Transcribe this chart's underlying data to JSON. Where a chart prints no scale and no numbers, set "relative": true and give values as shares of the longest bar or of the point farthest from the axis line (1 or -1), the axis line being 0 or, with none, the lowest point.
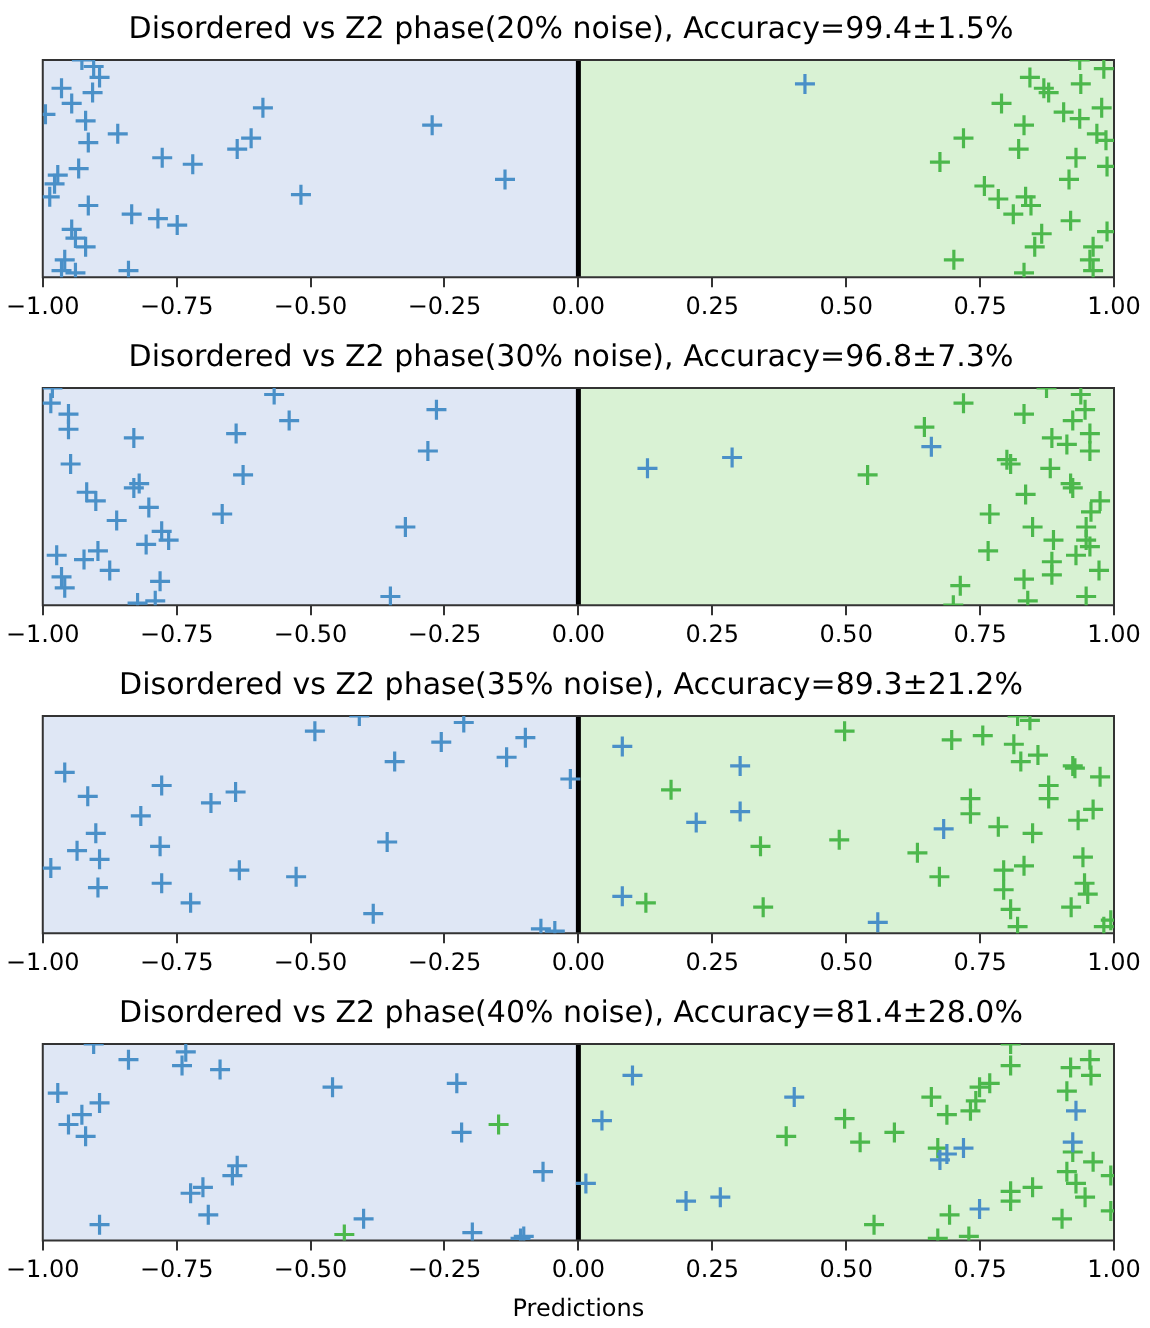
{
  "chart_data": [
    {
      "type": "scatter",
      "title": "Disordered vs Z2 phase(20% noise), Accuracy=99.4±1.5%",
      "relative": true,
      "marker": "cross",
      "tick_labels": "x",
      "xlim": [
        -1,
        1
      ],
      "xticks": [
        {
          "value": -1,
          "label": "−1.00"
        },
        {
          "value": -0.75,
          "label": "−0.75"
        },
        {
          "value": -0.5,
          "label": "−0.50"
        },
        {
          "value": -0.25,
          "label": "−0.25"
        },
        {
          "value": 0,
          "label": "0.00"
        },
        {
          "value": 0.25,
          "label": "0.25"
        },
        {
          "value": 0.5,
          "label": "0.50"
        },
        {
          "value": 0.75,
          "label": "0.75"
        },
        {
          "value": 1,
          "label": "1.00"
        }
      ],
      "bands": [
        {
          "axis": "x",
          "from": -1,
          "to": 0,
          "color": "#dfe7f5"
        },
        {
          "axis": "x",
          "from": 0,
          "to": 1,
          "color": "#d9f2d4"
        }
      ],
      "ref_lines": [
        {
          "axis": "x",
          "value": 0,
          "color": "#000000"
        }
      ],
      "series": [
        {
          "color": "#4a90c8",
          "x": [
            -0.927,
            -0.905,
            -0.894,
            -0.965,
            -0.907,
            -0.946,
            -0.995,
            -0.92,
            -0.86,
            -0.915,
            -0.589,
            -0.273,
            -0.611,
            -0.637,
            -0.777,
            -0.72,
            -0.933,
            -0.972,
            -0.978,
            -0.987,
            -0.915,
            -0.518,
            -0.137,
            -0.834,
            -0.785,
            -0.749,
            -0.946,
            -0.939,
            -0.92,
            -0.959,
            -0.965,
            -0.939,
            -0.84,
            0.423
          ],
          "values": [
            1,
            0.97,
            0.92,
            0.87,
            0.85,
            0.8,
            0.75,
            0.72,
            0.66,
            0.62,
            0.78,
            0.7,
            0.64,
            0.59,
            0.55,
            0.52,
            0.5,
            0.47,
            0.43,
            0.37,
            0.33,
            0.38,
            0.45,
            0.29,
            0.27,
            0.24,
            0.22,
            0.18,
            0.14,
            0.08,
            0.03,
            0.02,
            0.03,
            0.89
          ]
        },
        {
          "color": "#4cb84c",
          "x": [
            0.843,
            0.869,
            0.878,
            0.936,
            0.981,
            0.938,
            0.79,
            0.906,
            0.936,
            0.977,
            0.832,
            0.719,
            0.968,
            0.985,
            0.822,
            0.675,
            0.929,
            0.987,
            0.916,
            0.758,
            0.784,
            0.835,
            0.845,
            0.812,
            0.919,
            0.865,
            0.852,
            0.987,
            0.961,
            0.955,
            0.961,
            0.701,
            0.832
          ],
          "values": [
            0.92,
            0.87,
            0.85,
            1,
            0.96,
            0.89,
            0.8,
            0.76,
            0.73,
            0.78,
            0.7,
            0.64,
            0.66,
            0.63,
            0.59,
            0.53,
            0.55,
            0.51,
            0.45,
            0.42,
            0.36,
            0.37,
            0.33,
            0.29,
            0.26,
            0.2,
            0.14,
            0.21,
            0.14,
            0.08,
            0.03,
            0.08,
            0.02
          ]
        }
      ]
    },
    {
      "type": "scatter",
      "title": "Disordered vs Z2 phase(30% noise), Accuracy=96.8±7.3%",
      "relative": true,
      "marker": "cross",
      "tick_labels": "x",
      "xlim": [
        -1,
        1
      ],
      "xticks": [
        {
          "value": -1,
          "label": "−1.00"
        },
        {
          "value": -0.75,
          "label": "−0.75"
        },
        {
          "value": -0.5,
          "label": "−0.50"
        },
        {
          "value": -0.25,
          "label": "−0.25"
        },
        {
          "value": 0,
          "label": "0.00"
        },
        {
          "value": 0.25,
          "label": "0.25"
        },
        {
          "value": 0.5,
          "label": "0.50"
        },
        {
          "value": 0.75,
          "label": "0.75"
        },
        {
          "value": 1,
          "label": "1.00"
        }
      ],
      "bands": [
        {
          "axis": "x",
          "from": -1,
          "to": 0,
          "color": "#dfe7f5"
        },
        {
          "axis": "x",
          "from": 0,
          "to": 1,
          "color": "#d9f2d4"
        }
      ],
      "ref_lines": [
        {
          "axis": "x",
          "value": 0,
          "color": "#000000"
        }
      ],
      "series": [
        {
          "color": "#4a90c8",
          "x": [
            -0.982,
            -0.985,
            -0.952,
            -0.952,
            -0.83,
            -0.948,
            -0.918,
            -0.901,
            -0.83,
            -0.82,
            -0.802,
            -0.862,
            -0.778,
            -0.765,
            -0.807,
            -0.897,
            -0.923,
            -0.974,
            -0.875,
            -0.965,
            -0.959,
            -0.781,
            -0.79,
            -0.823,
            -0.639,
            -0.568,
            -0.54,
            -0.626,
            -0.665,
            -0.265,
            -0.281,
            -0.323,
            -0.351,
            0.129,
            0.287,
            0.659
          ],
          "values": [
            1,
            0.93,
            0.88,
            0.81,
            0.77,
            0.65,
            0.52,
            0.48,
            0.54,
            0.56,
            0.45,
            0.39,
            0.34,
            0.3,
            0.28,
            0.25,
            0.21,
            0.23,
            0.16,
            0.13,
            0.08,
            0.11,
            0.02,
            0.01,
            0.79,
            0.97,
            0.85,
            0.6,
            0.42,
            0.9,
            0.71,
            0.36,
            0.04,
            0.63,
            0.68,
            0.73
          ]
        },
        {
          "color": "#4cb84c",
          "x": [
            0.719,
            0.646,
            0.832,
            0.874,
            0.938,
            0.946,
            0.923,
            0.955,
            0.884,
            0.912,
            0.955,
            0.8,
            0.807,
            0.881,
            0.54,
            0.919,
            0.923,
            0.835,
            0.974,
            0.768,
            0.957,
            0.948,
            0.848,
            0.887,
            0.948,
            0.765,
            0.929,
            0.884,
            0.955,
            0.884,
            0.972,
            0.832,
            0.713,
            0.839,
            0.948,
            0.7
          ],
          "values": [
            0.93,
            0.82,
            0.88,
            1,
            0.97,
            0.9,
            0.85,
            0.79,
            0.77,
            0.74,
            0.71,
            0.67,
            0.65,
            0.63,
            0.6,
            0.56,
            0.54,
            0.51,
            0.48,
            0.42,
            0.43,
            0.36,
            0.36,
            0.3,
            0.3,
            0.25,
            0.23,
            0.2,
            0.27,
            0.14,
            0.16,
            0.12,
            0.09,
            0.02,
            0.04,
            0
          ]
        }
      ]
    },
    {
      "type": "scatter",
      "title": "Disordered vs Z2 phase(35% noise), Accuracy=89.3±21.2%",
      "relative": true,
      "marker": "cross",
      "tick_labels": "x",
      "xlim": [
        -1,
        1
      ],
      "xticks": [
        {
          "value": -1,
          "label": "−1.00"
        },
        {
          "value": -0.75,
          "label": "−0.75"
        },
        {
          "value": -0.5,
          "label": "−0.50"
        },
        {
          "value": -0.25,
          "label": "−0.25"
        },
        {
          "value": 0,
          "label": "0.00"
        },
        {
          "value": 0.25,
          "label": "0.25"
        },
        {
          "value": 0.5,
          "label": "0.50"
        },
        {
          "value": 0.75,
          "label": "0.75"
        },
        {
          "value": 1,
          "label": "1.00"
        }
      ],
      "bands": [
        {
          "axis": "x",
          "from": -1,
          "to": 0,
          "color": "#dfe7f5"
        },
        {
          "axis": "x",
          "from": 0,
          "to": 1,
          "color": "#d9f2d4"
        }
      ],
      "ref_lines": [
        {
          "axis": "x",
          "value": 0,
          "color": "#000000"
        }
      ],
      "series": [
        {
          "color": "#4a90c8",
          "x": [
            -0.959,
            -0.916,
            -0.901,
            -0.936,
            -0.894,
            -0.985,
            -0.897,
            -0.817,
            -0.778,
            -0.781,
            -0.778,
            -0.724,
            -0.686,
            -0.64,
            -0.633,
            -0.527,
            -0.492,
            -0.409,
            -0.343,
            -0.357,
            -0.383,
            -0.256,
            -0.214,
            -0.134,
            -0.099,
            -0.015,
            -0.07,
            -0.044,
            0.082,
            0.302,
            0.302,
            0.22,
            0.082,
            0.682,
            0.559
          ],
          "values": [
            0.74,
            0.63,
            0.46,
            0.38,
            0.34,
            0.3,
            0.21,
            0.54,
            0.68,
            0.4,
            0.23,
            0.14,
            0.6,
            0.65,
            0.29,
            0.26,
            0.93,
            1,
            0.79,
            0.42,
            0.09,
            0.88,
            0.97,
            0.81,
            0.9,
            0.71,
            0.02,
            0.01,
            0.86,
            0.77,
            0.56,
            0.51,
            0.17,
            0.48,
            0.05
          ]
        },
        {
          "color": "#4cb84c",
          "x": [
            0.497,
            0.697,
            0.755,
            0.82,
            0.843,
            0.813,
            0.858,
            0.826,
            0.923,
            0.927,
            0.974,
            0.878,
            0.878,
            0.173,
            0.732,
            0.732,
            0.961,
            0.933,
            0.784,
            0.848,
            0.34,
            0.487,
            0.633,
            0.942,
            0.674,
            0.794,
            0.794,
            0.832,
            0.945,
            0.951,
            0.92,
            0.126,
            0.345,
            0.807,
            0.82,
            0.981,
            0.994
          ],
          "values": [
            0.93,
            0.89,
            0.91,
            1,
            0.98,
            0.87,
            0.82,
            0.79,
            0.77,
            0.76,
            0.72,
            0.68,
            0.62,
            0.66,
            0.62,
            0.55,
            0.57,
            0.52,
            0.49,
            0.46,
            0.4,
            0.43,
            0.37,
            0.35,
            0.26,
            0.29,
            0.2,
            0.31,
            0.23,
            0.18,
            0.12,
            0.14,
            0.12,
            0.11,
            0.03,
            0.03,
            0.06
          ]
        }
      ]
    },
    {
      "type": "scatter",
      "title": "Disordered vs Z2 phase(40% noise), Accuracy=81.4±28.0%",
      "xlabel": "Predictions",
      "relative": true,
      "marker": "cross",
      "tick_labels": "x",
      "xlim": [
        -1,
        1
      ],
      "xticks": [
        {
          "value": -1,
          "label": "−1.00"
        },
        {
          "value": -0.75,
          "label": "−0.75"
        },
        {
          "value": -0.5,
          "label": "−0.50"
        },
        {
          "value": -0.25,
          "label": "−0.25"
        },
        {
          "value": 0,
          "label": "0.00"
        },
        {
          "value": 0.25,
          "label": "0.25"
        },
        {
          "value": 0.5,
          "label": "0.50"
        },
        {
          "value": 0.75,
          "label": "0.75"
        },
        {
          "value": 1,
          "label": "1.00"
        }
      ],
      "bands": [
        {
          "axis": "x",
          "from": -1,
          "to": 0,
          "color": "#dfe7f5"
        },
        {
          "axis": "x",
          "from": 0,
          "to": 1,
          "color": "#d9f2d4"
        }
      ],
      "ref_lines": [
        {
          "axis": "x",
          "value": 0,
          "color": "#000000"
        }
      ],
      "series": [
        {
          "color": "#4a90c8",
          "x": [
            -0.905,
            -0.84,
            -0.733,
            -0.74,
            -0.669,
            -0.972,
            -0.894,
            -0.927,
            -0.952,
            -0.92,
            -0.459,
            -0.227,
            -0.218,
            -0.637,
            -0.646,
            -0.724,
            -0.701,
            -0.691,
            -0.894,
            -0.401,
            -0.198,
            -0.108,
            -0.102,
            -0.066,
            0.014,
            0.044,
            0.101,
            0.201,
            0.265,
            0.403,
            0.675,
            0.688,
            0.719,
            0.749,
            0.929,
            0.923
          ],
          "values": [
            1,
            0.92,
            0.96,
            0.89,
            0.87,
            0.75,
            0.7,
            0.64,
            0.59,
            0.53,
            0.78,
            0.8,
            0.55,
            0.38,
            0.33,
            0.24,
            0.27,
            0.13,
            0.08,
            0.11,
            0.04,
            0.01,
            0.02,
            0.35,
            0.29,
            0.61,
            0.84,
            0.2,
            0.22,
            0.73,
            0.41,
            0.44,
            0.47,
            0.16,
            0.66,
            0.5
          ]
        },
        {
          "color": "#4cb84c",
          "x": [
            0.807,
            0.807,
            0.919,
            0.955,
            0.957,
            0.659,
            0.688,
            0.732,
            0.742,
            0.749,
            0.768,
            0.912,
            0.497,
            0.388,
            0.526,
            0.59,
            0.671,
            0.923,
            0.961,
            0.994,
            0.912,
            0.929,
            0.848,
            0.807,
            0.807,
            0.946,
            0.994,
            0.903,
            0.693,
            0.552,
            0.671,
            0.729,
            -0.149,
            -0.437
          ],
          "values": [
            1,
            0.89,
            0.88,
            0.92,
            0.84,
            0.73,
            0.64,
            0.66,
            0.71,
            0.78,
            0.8,
            0.76,
            0.62,
            0.53,
            0.5,
            0.55,
            0.47,
            0.45,
            0.4,
            0.33,
            0.35,
            0.29,
            0.27,
            0.25,
            0.2,
            0.22,
            0.15,
            0.11,
            0.13,
            0.08,
            0.01,
            0.02,
            0.59,
            0.03
          ]
        }
      ]
    }
  ]
}
